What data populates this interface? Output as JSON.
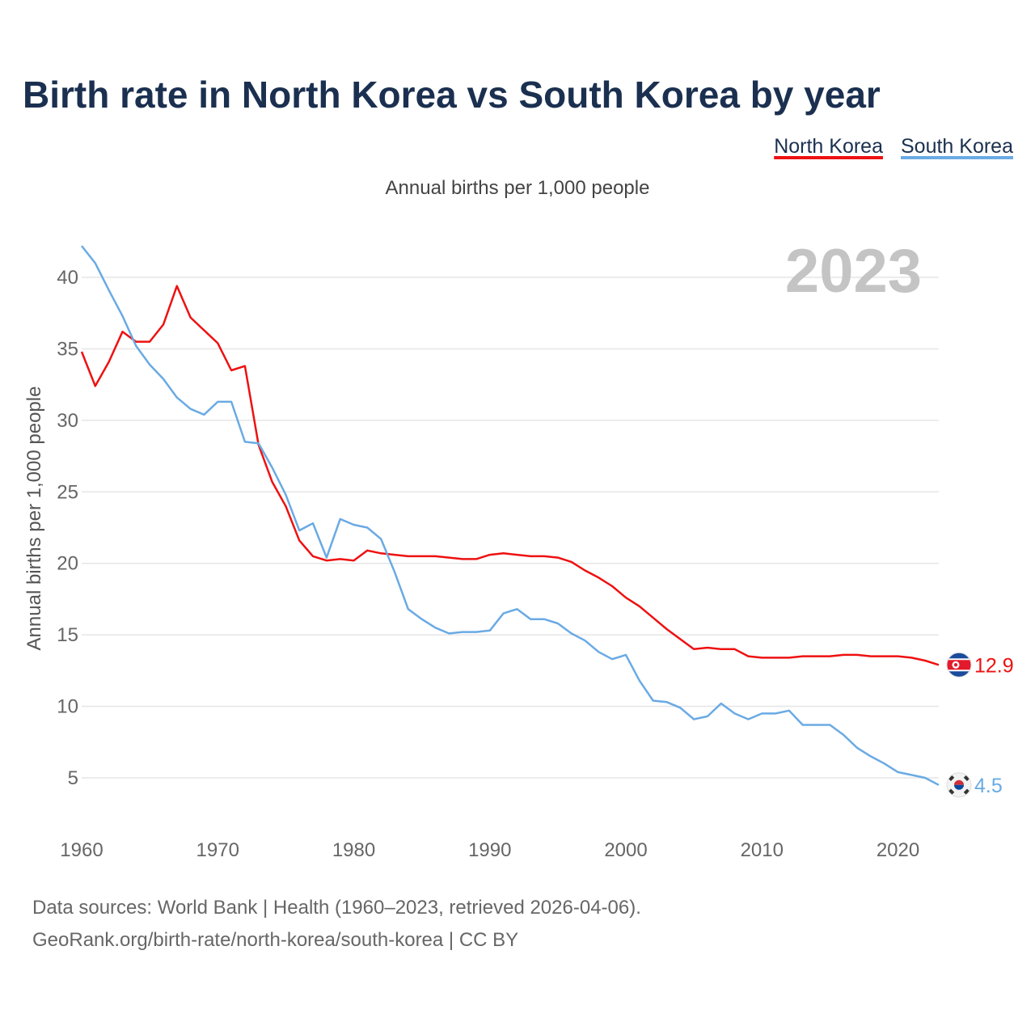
{
  "chart_data": {
    "type": "line",
    "title": "Birth rate in North Korea vs South Korea by year",
    "subtitle": "Annual births per 1,000 people",
    "ylabel": "Annual births per 1,000 people",
    "xlabel": "",
    "current_year_label": "2023",
    "xlim": [
      1960,
      2023
    ],
    "ylim": [
      2,
      43
    ],
    "x_ticks": [
      1960,
      1970,
      1980,
      1990,
      2000,
      2010,
      2020
    ],
    "y_ticks": [
      5,
      10,
      15,
      20,
      25,
      30,
      35,
      40
    ],
    "grid": true,
    "legend_position": "top-right",
    "x": [
      1960,
      1961,
      1962,
      1963,
      1964,
      1965,
      1966,
      1967,
      1968,
      1969,
      1970,
      1971,
      1972,
      1973,
      1974,
      1975,
      1976,
      1977,
      1978,
      1979,
      1980,
      1981,
      1982,
      1983,
      1984,
      1985,
      1986,
      1987,
      1988,
      1989,
      1990,
      1991,
      1992,
      1993,
      1994,
      1995,
      1996,
      1997,
      1998,
      1999,
      2000,
      2001,
      2002,
      2003,
      2004,
      2005,
      2006,
      2007,
      2008,
      2009,
      2010,
      2011,
      2012,
      2013,
      2014,
      2015,
      2016,
      2017,
      2018,
      2019,
      2020,
      2021,
      2022,
      2023
    ],
    "series": [
      {
        "name": "North Korea",
        "color": "#ee1111",
        "end_label": "12.9",
        "values": [
          34.8,
          32.4,
          34.1,
          36.2,
          35.5,
          35.5,
          36.7,
          39.4,
          37.2,
          36.3,
          35.4,
          33.5,
          33.8,
          28.3,
          25.7,
          24.0,
          21.6,
          20.5,
          20.2,
          20.3,
          20.2,
          20.9,
          20.7,
          20.6,
          20.5,
          20.5,
          20.5,
          20.4,
          20.3,
          20.3,
          20.6,
          20.7,
          20.6,
          20.5,
          20.5,
          20.4,
          20.1,
          19.5,
          19.0,
          18.4,
          17.6,
          17.0,
          16.2,
          15.4,
          14.7,
          14.0,
          14.1,
          14.0,
          14.0,
          13.5,
          13.4,
          13.4,
          13.4,
          13.5,
          13.5,
          13.5,
          13.6,
          13.6,
          13.5,
          13.5,
          13.5,
          13.4,
          13.2,
          12.9
        ]
      },
      {
        "name": "South Korea",
        "color": "#6aaae4",
        "end_label": "4.5",
        "values": [
          42.2,
          41.0,
          39.1,
          37.3,
          35.2,
          33.9,
          32.9,
          31.6,
          30.8,
          30.4,
          31.3,
          31.3,
          28.5,
          28.4,
          26.7,
          24.8,
          22.3,
          22.8,
          20.4,
          23.1,
          22.7,
          22.5,
          21.7,
          19.4,
          16.8,
          16.1,
          15.5,
          15.1,
          15.2,
          15.2,
          15.3,
          16.5,
          16.8,
          16.1,
          16.1,
          15.8,
          15.1,
          14.6,
          13.8,
          13.3,
          13.6,
          11.8,
          10.4,
          10.3,
          9.9,
          9.1,
          9.3,
          10.2,
          9.5,
          9.1,
          9.5,
          9.5,
          9.7,
          8.7,
          8.7,
          8.7,
          8.0,
          7.1,
          6.5,
          6.0,
          5.4,
          5.2,
          5.0,
          4.5
        ]
      }
    ]
  },
  "source_line1": "Data sources: World Bank | Health (1960–2023, retrieved 2026-04-06).",
  "source_line2": "GeoRank.org/birth-rate/north-korea/south-korea | CC BY",
  "flags": {
    "north_korea": "north-korea-flag-icon",
    "south_korea": "south-korea-flag-icon"
  }
}
